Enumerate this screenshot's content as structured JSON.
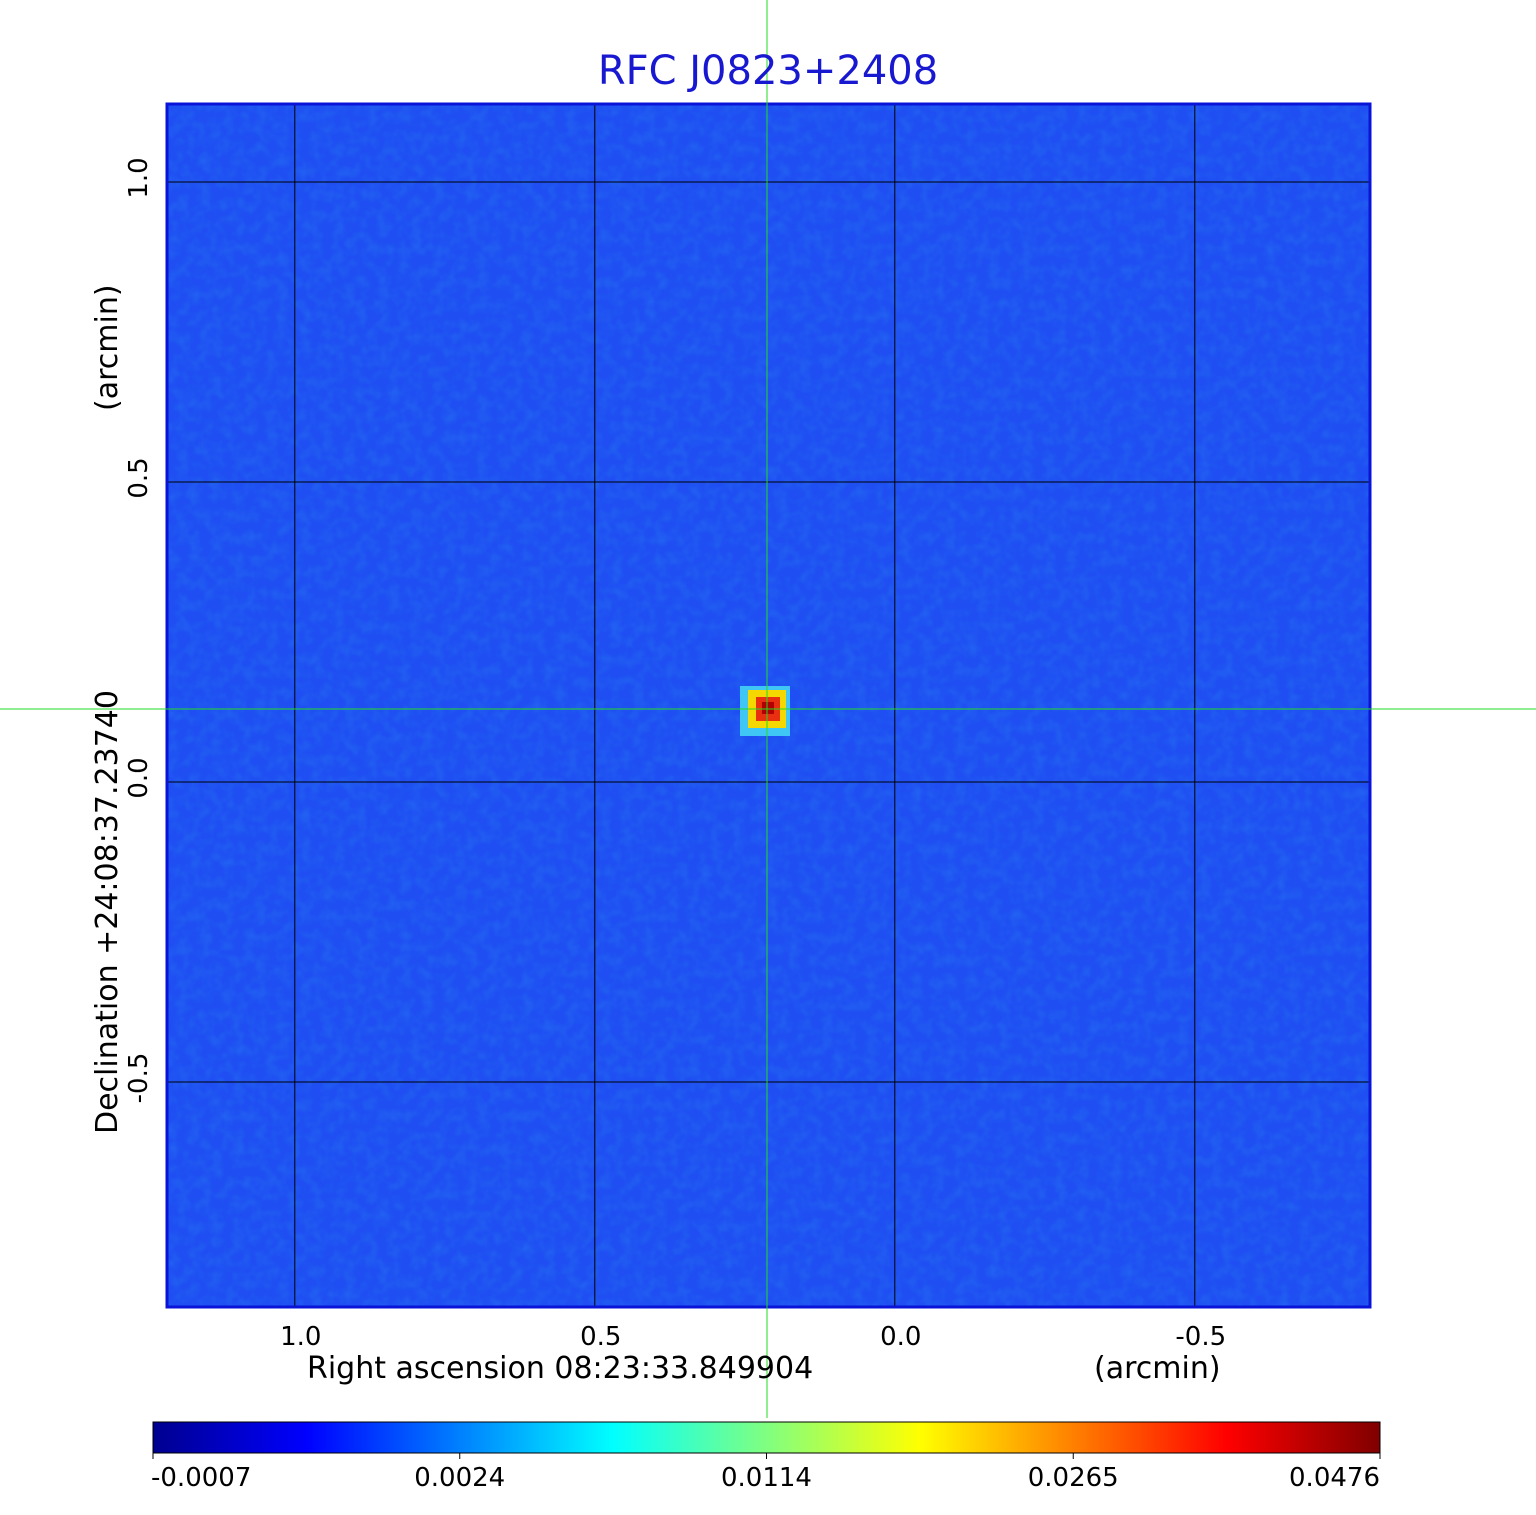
{
  "chart_data": {
    "type": "image",
    "title": "RFC J0823+2408",
    "xlabel": "Right ascension  08:23:33.849904",
    "xunit": "(arcmin)",
    "ylabel": "Declination  +24:08:37.23740",
    "yunit": "(arcmin)",
    "xlim": [
      1.213,
      -0.792
    ],
    "ylim": [
      -0.875,
      1.13
    ],
    "xticks": [
      {
        "value": 1,
        "label": "1.0"
      },
      {
        "value": 0.5,
        "label": "0.5"
      },
      {
        "value": 0,
        "label": "0.0"
      },
      {
        "value": -0.5,
        "label": "-0.5"
      }
    ],
    "yticks": [
      {
        "value": 1,
        "label": "1.0"
      },
      {
        "value": 0.5,
        "label": "0.5"
      },
      {
        "value": 0,
        "label": "0.0"
      },
      {
        "value": -0.5,
        "label": "-0.5"
      }
    ],
    "grid": true,
    "colorbar": {
      "ticks": [
        -0.0007,
        0.0024,
        0.0114,
        0.0265,
        0.0476
      ],
      "colormap": [
        "#00008f",
        "#0000ff",
        "#0080ff",
        "#00ffff",
        "#80ff80",
        "#ffff00",
        "#ff8000",
        "#ff0000",
        "#800000"
      ]
    }
  }
}
